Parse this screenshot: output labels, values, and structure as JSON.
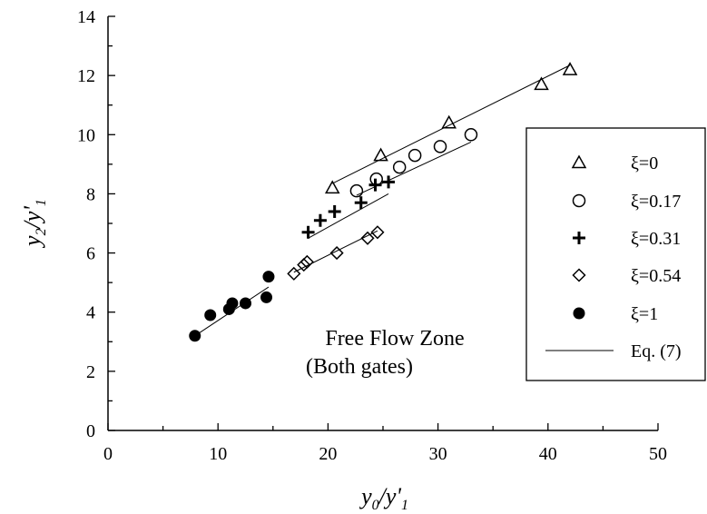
{
  "chart_data": {
    "type": "scatter",
    "xlabel": {
      "main": "y",
      "sub0": "0",
      "slash": "/y'",
      "sub1": "1"
    },
    "ylabel": {
      "main": "y",
      "sub0": "2",
      "slash": "/y'",
      "sub1": "1"
    },
    "xlim": [
      0,
      50
    ],
    "ylim": [
      0,
      14
    ],
    "xticks": [
      0,
      10,
      20,
      30,
      40,
      50
    ],
    "yticks": [
      0,
      2,
      4,
      6,
      8,
      10,
      12,
      14
    ],
    "grid": false,
    "legend_position": "right",
    "annotation": [
      "Free Flow Zone",
      "(Both gates)"
    ],
    "series": [
      {
        "name": "ξ=0",
        "marker": "triangle-open",
        "points": [
          [
            20.4,
            8.2
          ],
          [
            24.8,
            9.3
          ],
          [
            31.0,
            10.4
          ],
          [
            39.4,
            11.7
          ],
          [
            42.0,
            12.2
          ]
        ],
        "fit": [
          [
            20.4,
            8.35
          ],
          [
            42.0,
            12.35
          ]
        ]
      },
      {
        "name": "ξ=0.17",
        "marker": "circle-open",
        "points": [
          [
            22.6,
            8.1
          ],
          [
            24.4,
            8.5
          ],
          [
            26.5,
            8.9
          ],
          [
            27.9,
            9.3
          ],
          [
            30.2,
            9.6
          ],
          [
            33.0,
            10.0
          ]
        ],
        "fit": [
          [
            22.6,
            7.95
          ],
          [
            33.0,
            9.75
          ]
        ]
      },
      {
        "name": "ξ=0.31",
        "marker": "plus",
        "points": [
          [
            18.2,
            6.7
          ],
          [
            19.3,
            7.1
          ],
          [
            20.6,
            7.4
          ],
          [
            23.0,
            7.7
          ],
          [
            24.3,
            8.3
          ],
          [
            25.5,
            8.4
          ]
        ],
        "fit": [
          [
            18.2,
            6.5
          ],
          [
            25.5,
            8.0
          ]
        ]
      },
      {
        "name": "ξ=0.54",
        "marker": "diamond-open",
        "points": [
          [
            16.9,
            5.3
          ],
          [
            17.8,
            5.6
          ],
          [
            18.1,
            5.7
          ],
          [
            20.8,
            6.0
          ],
          [
            23.6,
            6.5
          ],
          [
            24.5,
            6.7
          ]
        ],
        "fit": [
          [
            16.9,
            5.35
          ],
          [
            24.5,
            6.75
          ]
        ]
      },
      {
        "name": "ξ=1",
        "marker": "circle-filled",
        "points": [
          [
            7.9,
            3.2
          ],
          [
            9.3,
            3.9
          ],
          [
            11.0,
            4.1
          ],
          [
            11.3,
            4.3
          ],
          [
            12.5,
            4.3
          ],
          [
            14.4,
            4.5
          ],
          [
            14.6,
            5.2
          ]
        ],
        "fit": [
          [
            7.9,
            3.2
          ],
          [
            14.6,
            4.85
          ]
        ]
      }
    ],
    "fit_label": "Eq. (7)"
  }
}
